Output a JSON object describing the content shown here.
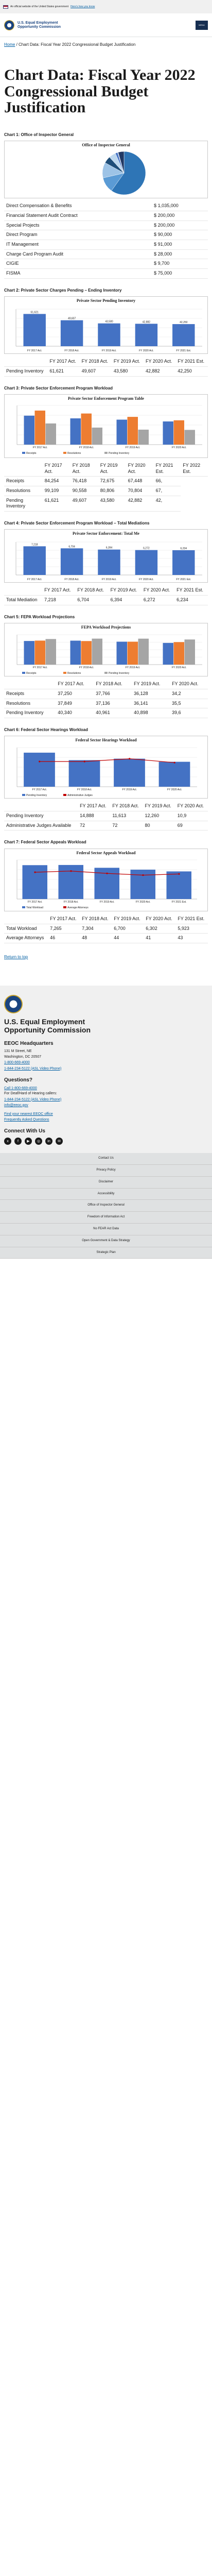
{
  "banner": {
    "text": "An official website of the United States government",
    "link": "Here's how you know"
  },
  "header": {
    "agency_line1": "U.S. Equal Employment",
    "agency_line2": "Opportunity Commission",
    "menu_label": "MENU"
  },
  "breadcrumb": {
    "home": "Home",
    "current": "Chart Data: Fiscal Year 2022 Congressional Budget Justification"
  },
  "page_title": "Chart Data: Fiscal Year 2022 Congressional Budget Justification",
  "charts": {
    "c1": {
      "title": "Chart 1: Office of Inspector General",
      "inner_title": "Office of Inspector General",
      "rows": [
        [
          "Direct Compensation & Benefits",
          "$ 1,035,000"
        ],
        [
          "Financial Statement Audit Contract",
          "$ 200,000"
        ],
        [
          "Special Projects",
          "$ 200,000"
        ],
        [
          "Direct Program",
          "$ 90,000"
        ],
        [
          "IT Management",
          "$ 91,000"
        ],
        [
          "Charge Card Program Audit",
          "$ 28,000"
        ],
        [
          "CIGIE",
          "$ 9,700"
        ],
        [
          "FISMA",
          "$ 75,000"
        ]
      ]
    },
    "c2": {
      "title": "Chart 2: Private Sector Charges Pending – Ending Inventory",
      "inner_title": "Private Sector Pending Inventory",
      "head": [
        "",
        "FY 2017 Act.",
        "FY 2018 Act.",
        "FY 2019 Act.",
        "FY 2020 Act.",
        "FY 2021 Est."
      ],
      "rows": [
        [
          "Pending Inventory",
          "61,621",
          "49,607",
          "43,580",
          "42,882",
          "42,250"
        ]
      ],
      "value_labels": [
        "61,621",
        "49,607",
        "43,580",
        "42,882",
        "42,250"
      ],
      "categories": [
        "FY 2017 Act.",
        "FY 2018 Act.",
        "FY 2019 Act.",
        "FY 2020 Act.",
        "FY 2021 Est."
      ]
    },
    "c3": {
      "title": "Chart 3: Private Sector Enforcement Program Workload",
      "inner_title": "Private Sector Enforcement Program Table",
      "head": [
        "",
        "FY 2017 Act.",
        "FY 2018 Act.",
        "FY 2019 Act.",
        "FY 2020 Act.",
        "FY 2021 Est.",
        "FY 2022 Est."
      ],
      "rows": [
        [
          "Receipts",
          "84,254",
          "76,418",
          "72,675",
          "67,448",
          "66,"
        ],
        [
          "Resolutions",
          "99,109",
          "90,558",
          "80,806",
          "70,804",
          "67,"
        ],
        [
          "Pending Inventory",
          "61,621",
          "49,607",
          "43,580",
          "42,882",
          "42,"
        ]
      ],
      "legend": [
        "Receipts",
        "Resolutions",
        "Pending Inventory"
      ]
    },
    "c4": {
      "title": "Chart 4: Private Sector Enforcement Program Workload – Total Mediations",
      "inner_title": "Private Sector Enforcement: Total Me",
      "head": [
        "",
        "FY 2017 Act.",
        "FY 2018 Act.",
        "FY 2019 Act.",
        "FY 2020 Act.",
        "FY 2021 Est."
      ],
      "rows": [
        [
          "Total Mediation",
          "7,218",
          "6,704",
          "6,394",
          "6,272",
          "6,234"
        ]
      ],
      "value_labels": [
        "7,218",
        "6,704",
        "6,394",
        "6,272",
        "6,234"
      ],
      "categories": [
        "FY 2017 Act.",
        "FY 2018 Act.",
        "FY 2019 Act.",
        "FY 2020 Act.",
        "FY 2021 Est."
      ]
    },
    "c5": {
      "title": "Chart 5: FEPA Workload Projections",
      "inner_title": "FEPA Workload Projections",
      "head": [
        "",
        "FY 2017 Act.",
        "FY 2018 Act.",
        "FY 2019 Act.",
        "FY 2020 Act."
      ],
      "rows": [
        [
          "Receipts",
          "37,250",
          "37,766",
          "36,128",
          "34,2"
        ],
        [
          "Resolutions",
          "37,849",
          "37,136",
          "36,141",
          "35,5"
        ],
        [
          "Pending Inventory",
          "40,340",
          "40,961",
          "40,898",
          "39,6"
        ]
      ],
      "legend": [
        "Receipts",
        "Resolutions",
        "Pending Inventory"
      ]
    },
    "c6": {
      "title": "Chart 6: Federal Sector Hearings Workload",
      "inner_title": "Federal Sector Hearings Workload",
      "head": [
        "",
        "FY 2017 Act.",
        "FY 2018 Act.",
        "FY 2019 Act.",
        "FY 2020 Act."
      ],
      "rows": [
        [
          "Pending Inventory",
          "14,888",
          "11,613",
          "12,260",
          "10,9"
        ],
        [
          "Administrative Judges Available",
          "72",
          "72",
          "80",
          "69"
        ]
      ],
      "legend": [
        "Pending Inventory",
        "Administrative Judges"
      ]
    },
    "c7": {
      "title": "Chart 7: Federal Sector Appeals Workload",
      "inner_title": "Federal Sector Appeals Workload",
      "head": [
        "",
        "FY 2017 Act.",
        "FY 2018 Act.",
        "FY 2019 Act.",
        "FY 2020 Act.",
        "FY 2021 Est."
      ],
      "rows": [
        [
          "Total Workload",
          "7,265",
          "7,304",
          "6,700",
          "6,302",
          "5,923"
        ],
        [
          "Average Attorneys",
          "46",
          "48",
          "44",
          "41",
          "43"
        ]
      ],
      "legend": [
        "Total Workload",
        "Average Attorneys"
      ]
    }
  },
  "chart_data": [
    {
      "type": "pie",
      "title": "Office of Inspector General",
      "categories": [
        "Direct Compensation & Benefits",
        "Financial Statement Audit Contract",
        "Special Projects",
        "Direct Program",
        "IT Management",
        "Charge Card Program Audit",
        "CIGIE",
        "FISMA"
      ],
      "values": [
        1035000,
        200000,
        200000,
        90000,
        91000,
        28000,
        9700,
        75000
      ]
    },
    {
      "type": "bar",
      "title": "Private Sector Pending Inventory",
      "categories": [
        "FY 2017 Act.",
        "FY 2018 Act.",
        "FY 2019 Act.",
        "FY 2020 Act.",
        "FY 2021 Est."
      ],
      "values": [
        61621,
        49607,
        43580,
        42882,
        42250
      ]
    },
    {
      "type": "bar",
      "title": "Private Sector Enforcement Program Table",
      "categories": [
        "FY 2017 Act.",
        "FY 2018 Act.",
        "FY 2019 Act.",
        "FY 2020 Act."
      ],
      "series": [
        {
          "name": "Receipts",
          "values": [
            84254,
            76418,
            72675,
            67448
          ]
        },
        {
          "name": "Resolutions",
          "values": [
            99109,
            90558,
            80806,
            70804
          ]
        },
        {
          "name": "Pending Inventory",
          "values": [
            61621,
            49607,
            43580,
            42882
          ]
        }
      ]
    },
    {
      "type": "bar",
      "title": "Private Sector Enforcement: Total Me",
      "categories": [
        "FY 2017 Act.",
        "FY 2018 Act.",
        "FY 2019 Act.",
        "FY 2020 Act.",
        "FY 2021 Est."
      ],
      "values": [
        7218,
        6704,
        6394,
        6272,
        6234
      ]
    },
    {
      "type": "bar",
      "title": "FEPA Workload Projections",
      "categories": [
        "FY 2017 Act.",
        "FY 2018 Act.",
        "FY 2019 Act.",
        "FY 2020 Act."
      ],
      "series": [
        {
          "name": "Receipts",
          "values": [
            37250,
            37766,
            36128,
            34200
          ]
        },
        {
          "name": "Resolutions",
          "values": [
            37849,
            37136,
            36141,
            35500
          ]
        },
        {
          "name": "Pending Inventory",
          "values": [
            40340,
            40961,
            40898,
            39600
          ]
        }
      ]
    },
    {
      "type": "bar",
      "title": "Federal Sector Hearings Workload",
      "categories": [
        "FY 2017 Act.",
        "FY 2018 Act.",
        "FY 2019 Act.",
        "FY 2020 Act."
      ],
      "series": [
        {
          "name": "Pending Inventory",
          "values": [
            14888,
            11613,
            12260,
            10900
          ]
        },
        {
          "name": "Administrative Judges",
          "values": [
            72,
            72,
            80,
            69
          ]
        }
      ]
    },
    {
      "type": "bar",
      "title": "Federal Sector Appeals Workload",
      "categories": [
        "FY 2017 Act.",
        "FY 2018 Act.",
        "FY 2019 Act.",
        "FY 2020 Act.",
        "FY 2021 Est."
      ],
      "series": [
        {
          "name": "Total Workload",
          "values": [
            7265,
            7304,
            6700,
            6302,
            5923
          ]
        },
        {
          "name": "Average Attorneys",
          "values": [
            46,
            48,
            44,
            41,
            43
          ]
        }
      ]
    }
  ],
  "footer": {
    "return_top": "Return to top",
    "agency_line1": "U.S. Equal Employment",
    "agency_line2": "Opportunity Commission",
    "hq_heading": "EEOC Headquarters",
    "address1": "131 M Street, NE",
    "address2": "Washington, DC 20507",
    "phone": "1-800-669-4000",
    "tty": "1-844-234-5122 (ASL Video Phone)",
    "questions": "Questions?",
    "call": "Call 1-800-669-4000",
    "deaf": "For Deaf/Hard of Hearing callers:",
    "asl": "1-844-234-5122 (ASL Video Phone)",
    "email": "info@eeoc.gov",
    "local": "Find your nearest EEOC office",
    "faq": "Frequently Asked Questions",
    "connect": "Connect With Us",
    "social": [
      "x",
      "f",
      "▶",
      "◎",
      "in",
      "✉"
    ],
    "links": [
      "Contact Us",
      "Privacy Policy",
      "Disclaimer",
      "Accessibility",
      "Office of Inspector General",
      "Freedom of Information Act",
      "No FEAR Act Data",
      "Open Government & Data Strategy",
      "Strategic Plan"
    ]
  }
}
